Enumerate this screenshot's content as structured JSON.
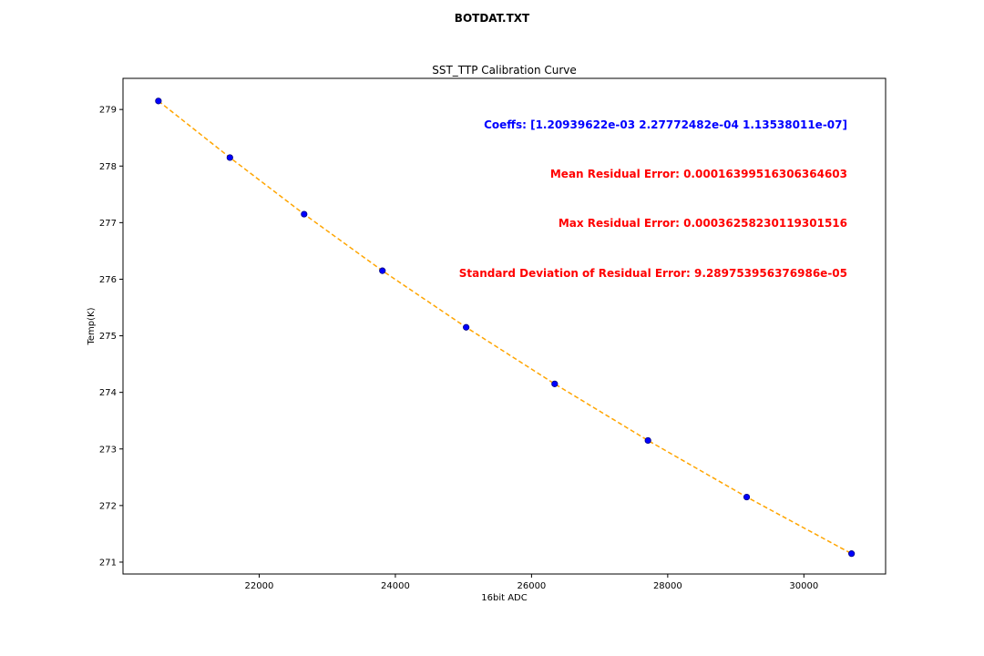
{
  "figure": {
    "suptitle": "BOTDAT.TXT"
  },
  "colors": {
    "points": "#0000ff",
    "fit_line": "#ffa500",
    "coeffs_text": "#0000ff",
    "error_text": "#ff0000"
  },
  "chart_data": {
    "type": "scatter",
    "title": "SST_TTP Calibration Curve",
    "xlabel": "16bit ADC",
    "ylabel": "Temp(K)",
    "xlim": [
      20000,
      31200
    ],
    "ylim": [
      270.79,
      279.55
    ],
    "xticks": [
      22000,
      24000,
      26000,
      28000,
      30000
    ],
    "yticks": [
      271,
      272,
      273,
      274,
      275,
      276,
      277,
      278,
      279
    ],
    "grid": false,
    "series": [
      {
        "marker": "circle",
        "x": [
          20520,
          21570,
          22660,
          23810,
          25040,
          26340,
          27710,
          29160,
          30700
        ],
        "y": [
          279.15,
          278.15,
          277.15,
          276.15,
          275.15,
          274.15,
          273.15,
          272.15,
          271.15
        ]
      },
      {
        "line_style": "dashed",
        "x": [
          20520,
          21570,
          22660,
          23810,
          25040,
          26340,
          27710,
          29160,
          30700
        ],
        "y": [
          279.15,
          278.15,
          277.15,
          276.15,
          275.15,
          274.15,
          273.15,
          272.15,
          271.15
        ]
      }
    ],
    "annotations": [
      "Coeffs: [1.20939622e-03 2.27772482e-04 1.13538011e-07]",
      "Mean Residual Error: 0.00016399516306364603",
      "Max Residual Error: 0.00036258230119301516",
      "Standard Deviation of Residual Error: 9.289753956376986e-05"
    ]
  }
}
